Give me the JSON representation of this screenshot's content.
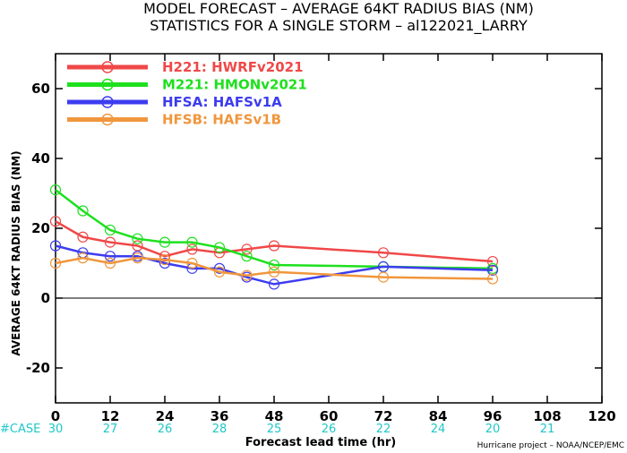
{
  "chart_data": {
    "type": "line",
    "title": "MODEL FORECAST – AVERAGE 64KT RADIUS BIAS (NM)",
    "subtitle": "STATISTICS FOR A SINGLE STORM – al122021_LARRY",
    "xlabel": "Forecast lead time (hr)",
    "ylabel": "AVERAGE 64KT RADIUS BIAS (NM)",
    "xlim": [
      0,
      120
    ],
    "ylim": [
      -30,
      70
    ],
    "xticks": [
      0,
      12,
      24,
      36,
      48,
      60,
      72,
      84,
      96,
      108,
      120
    ],
    "yticks": [
      -20,
      0,
      20,
      40,
      60
    ],
    "zero_line": true,
    "grid": false,
    "legend_position": "top-left",
    "series": [
      {
        "name": "H221: HWRFv2021",
        "color": "#f04848",
        "x": [
          0,
          6,
          12,
          18,
          24,
          30,
          36,
          42,
          48,
          72,
          96
        ],
        "y": [
          22,
          17.5,
          16,
          15,
          12,
          14,
          13,
          14,
          15,
          13,
          10.5
        ]
      },
      {
        "name": "M221: HMONv2021",
        "color": "#1ee01e",
        "x": [
          0,
          6,
          12,
          18,
          24,
          30,
          36,
          42,
          48,
          72,
          96
        ],
        "y": [
          31,
          25,
          19.5,
          17,
          16,
          16,
          14.5,
          12,
          9.5,
          9,
          8.5
        ]
      },
      {
        "name": "HFSA: HAFSv1A",
        "color": "#3c3cf0",
        "x": [
          0,
          6,
          12,
          18,
          24,
          30,
          36,
          42,
          48,
          72,
          96
        ],
        "y": [
          15,
          13,
          12,
          12,
          10,
          8.5,
          8.5,
          6,
          4,
          9,
          8
        ]
      },
      {
        "name": "HFSB: HAFSv1B",
        "color": "#f0963c",
        "x": [
          0,
          6,
          12,
          18,
          24,
          30,
          36,
          42,
          48,
          72,
          96
        ],
        "y": [
          10,
          11.5,
          10,
          11.5,
          11,
          10,
          7.5,
          6.5,
          7.5,
          6,
          5.5
        ]
      }
    ],
    "case_label": "#CASE",
    "case_color": "#1ec8c8",
    "cases": [
      {
        "x": 0,
        "n": "30"
      },
      {
        "x": 12,
        "n": "27"
      },
      {
        "x": 24,
        "n": "26"
      },
      {
        "x": 36,
        "n": "28"
      },
      {
        "x": 48,
        "n": "25"
      },
      {
        "x": 60,
        "n": "26"
      },
      {
        "x": 72,
        "n": "22"
      },
      {
        "x": 84,
        "n": "24"
      },
      {
        "x": 96,
        "n": "20"
      },
      {
        "x": 108,
        "n": "21"
      }
    ],
    "credit": "Hurricane project – NOAA/NCEP/EMC"
  }
}
